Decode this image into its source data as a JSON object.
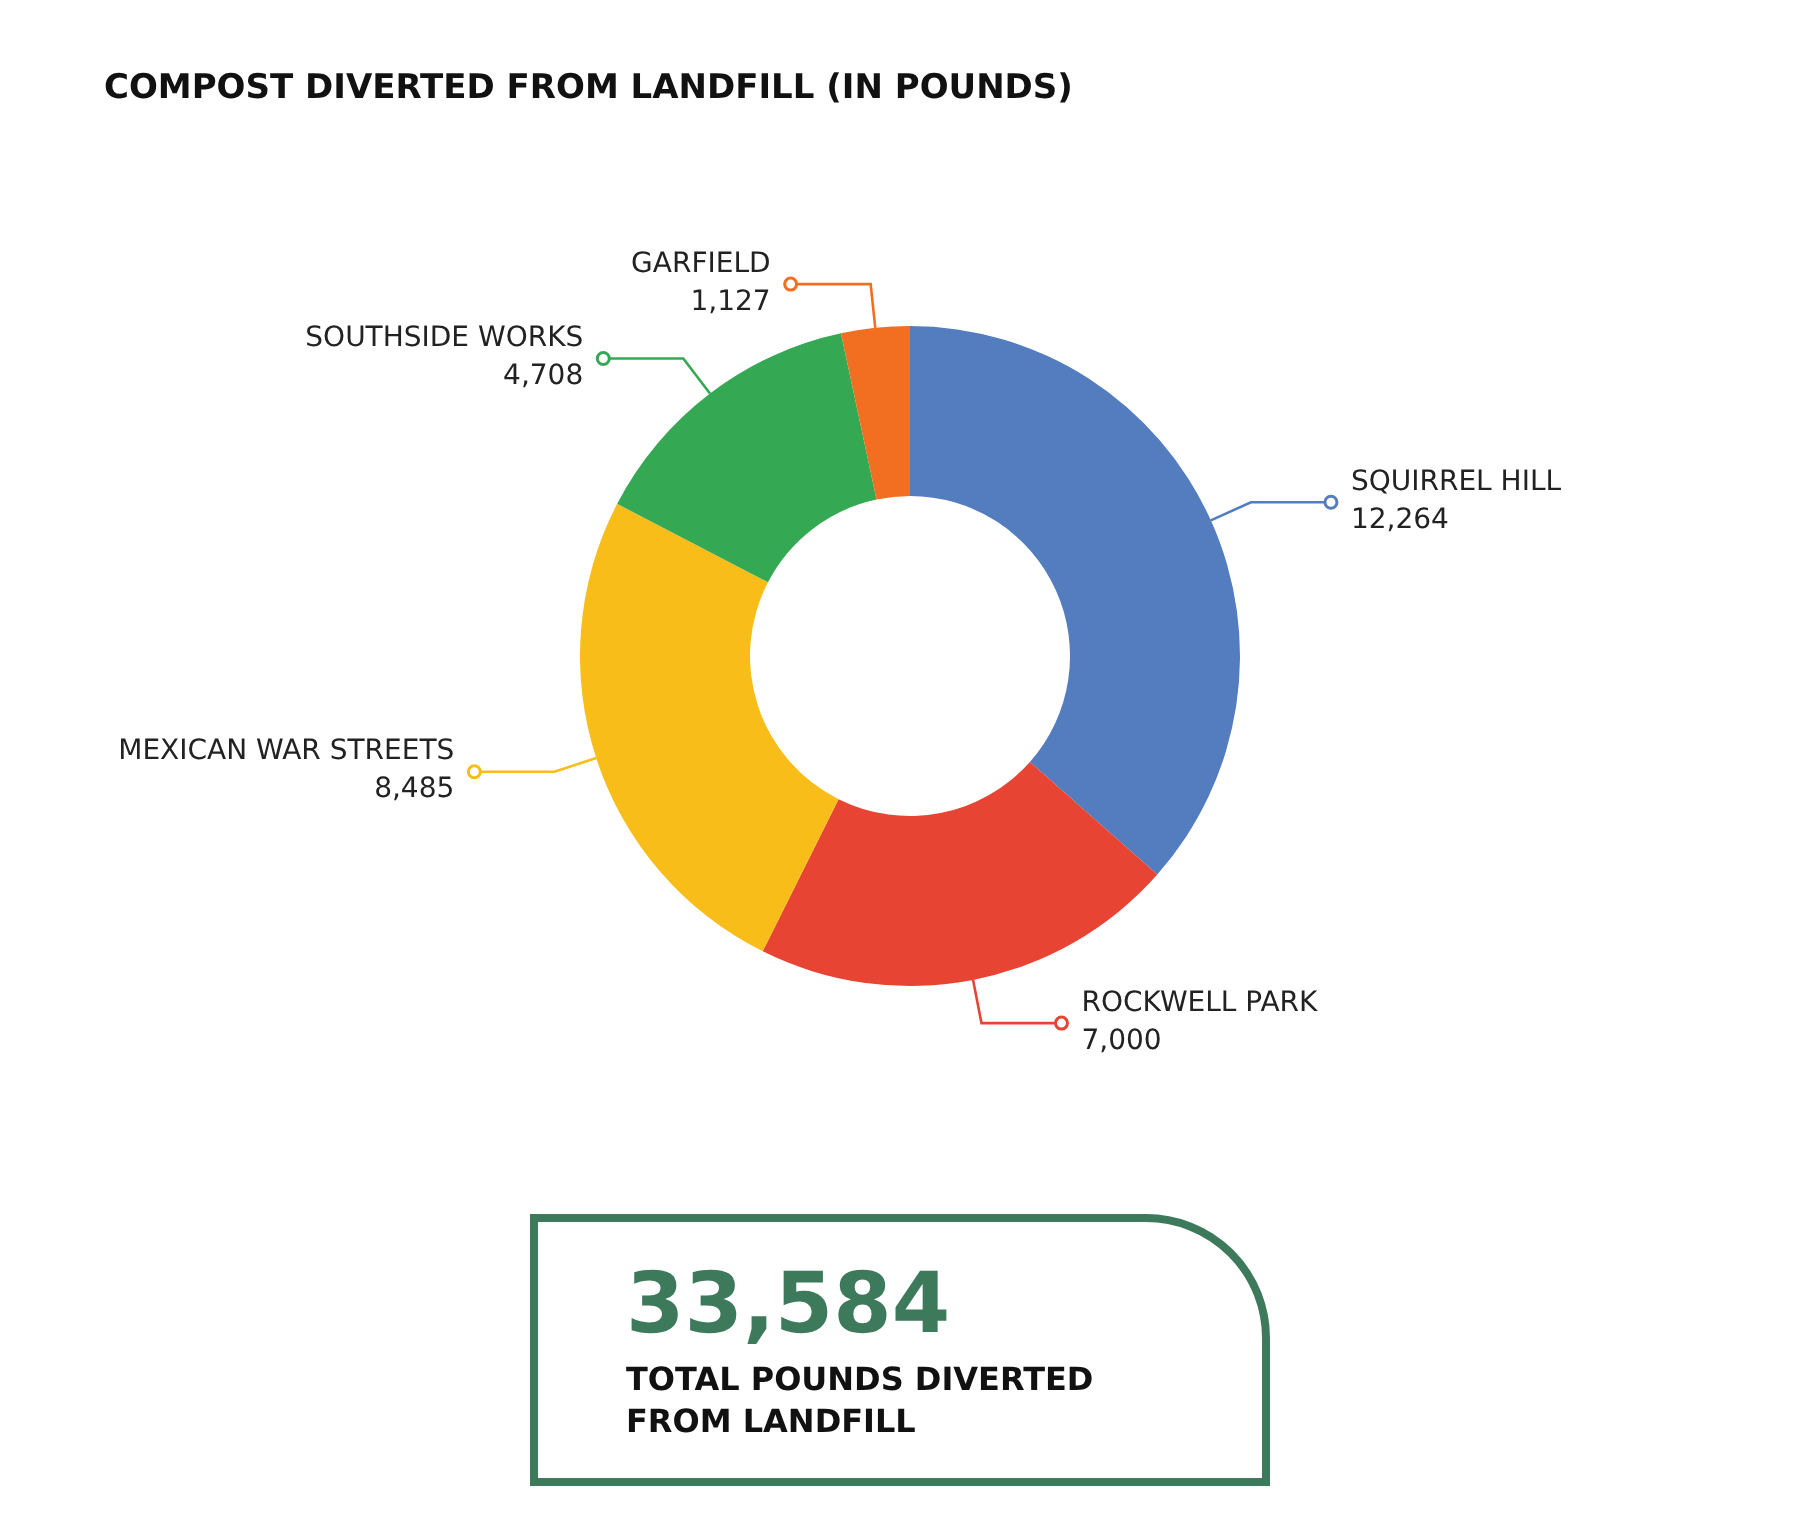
{
  "chart_data": {
    "type": "donut",
    "title": "COMPOST DIVERTED FROM LANDFILL (IN POUNDS)",
    "categories": [
      "SQUIRREL HILL",
      "ROCKWELL PARK",
      "MEXICAN WAR STREETS",
      "SOUTHSIDE WORKS",
      "GARFIELD"
    ],
    "values": [
      12264,
      7000,
      8485,
      4708,
      1127
    ],
    "value_labels": [
      "12,264",
      "7,000",
      "8,485",
      "4,708",
      "1,127"
    ],
    "colors": [
      "#537dbf",
      "#e84434",
      "#f8bd19",
      "#34a853",
      "#f26f21"
    ],
    "annotations": [
      "33,584",
      "TOTAL POUNDS DIVERTED FROM LANDFILL"
    ]
  }
}
